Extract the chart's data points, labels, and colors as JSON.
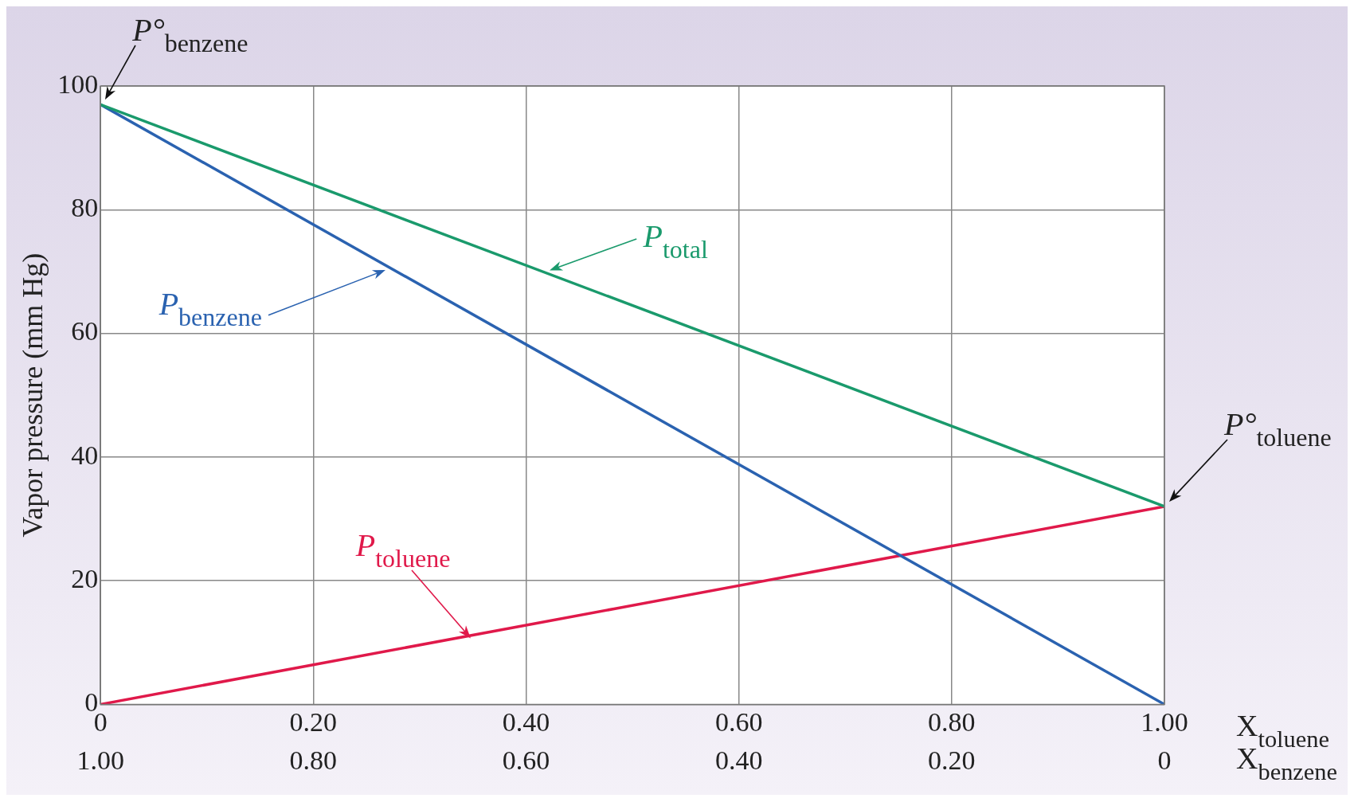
{
  "chart_data": {
    "type": "line",
    "x": [
      0,
      1
    ],
    "series": [
      {
        "name": "P$_{total}$",
        "color": "#1a9a6c",
        "values": [
          97,
          32
        ]
      },
      {
        "name": "P$_{benzene}$",
        "color": "#2a62b0",
        "values": [
          97,
          0
        ]
      },
      {
        "name": "P$_{toluene}$",
        "color": "#e0194a",
        "values": [
          0,
          32
        ]
      }
    ],
    "xlabel": "X$_{toluene}$",
    "x2label": "X$_{benzene}$",
    "ylabel": "Vapor pressure (mm Hg)",
    "xlim": [
      0,
      1
    ],
    "xticks": [
      0,
      {
        "value": 0.2,
        "label": "0.20"
      },
      {
        "value": 0.4,
        "label": "0.40"
      },
      {
        "value": 0.6,
        "label": "0.60"
      },
      {
        "value": 0.8,
        "label": "0.80"
      },
      {
        "value": 1,
        "label": "1.00"
      }
    ],
    "x2lim": [
      1,
      0
    ],
    "x2ticks": [
      {
        "value": 1,
        "label": "1.00"
      },
      {
        "value": 0.8,
        "label": "0.80"
      },
      {
        "value": 0.6,
        "label": "0.60"
      },
      {
        "value": 0.4,
        "label": "0.40"
      },
      {
        "value": 0.2,
        "label": "0.20"
      },
      0
    ],
    "ylim": [
      0,
      100
    ],
    "yticks": [
      0,
      20,
      40,
      60,
      80,
      100
    ],
    "annotations": [
      {
        "text": "P°$_{benzene}$",
        "x": 0,
        "y": 97
      },
      {
        "text": "P°$_{toluene}$",
        "x": 1,
        "y": 32
      }
    ],
    "grid": true,
    "marker": "none",
    "line_style": "solid"
  }
}
